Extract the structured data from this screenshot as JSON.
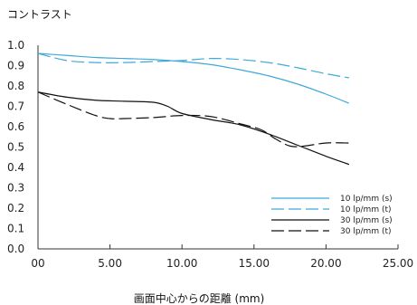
{
  "chart_data": {
    "type": "line",
    "ylabel": "コントラスト",
    "xlabel": "画面中心からの距離 (mm)",
    "xlim": [
      0,
      25
    ],
    "ylim": [
      0,
      1.0
    ],
    "x_ticks": [
      0,
      5,
      10,
      15,
      20,
      25
    ],
    "x_tick_labels": [
      "00",
      "5.00",
      "10.00",
      "15.00",
      "20.00",
      "25.00"
    ],
    "y_ticks": [
      0,
      0.1,
      0.2,
      0.3,
      0.4,
      0.5,
      0.6,
      0.7,
      0.8,
      0.9,
      1.0
    ],
    "y_tick_labels": [
      "0.0",
      "0.1",
      "0.2",
      "0.3",
      "0.4",
      "0.5",
      "0.6",
      "0.7",
      "0.8",
      "0.9",
      "1.0"
    ],
    "grid": false,
    "legend_position": "bottom-right",
    "series": [
      {
        "name": "10 lp/mm (s)",
        "color": "#3fa9d9",
        "dash": "solid",
        "x": [
          0,
          2,
          4,
          6,
          8,
          10,
          12,
          14,
          16,
          18,
          20,
          21.6
        ],
        "y": [
          0.96,
          0.95,
          0.94,
          0.935,
          0.93,
          0.92,
          0.905,
          0.88,
          0.85,
          0.81,
          0.76,
          0.715
        ]
      },
      {
        "name": "10 lp/mm (t)",
        "color": "#3fa9d9",
        "dash": "long-dash",
        "x": [
          0,
          2,
          4,
          6,
          8,
          10,
          12,
          14,
          16,
          18,
          20,
          21.6
        ],
        "y": [
          0.96,
          0.925,
          0.915,
          0.915,
          0.92,
          0.925,
          0.935,
          0.93,
          0.915,
          0.89,
          0.86,
          0.84
        ]
      },
      {
        "name": "30 lp/mm (s)",
        "color": "#111111",
        "dash": "solid",
        "x": [
          0,
          2,
          4,
          6,
          8,
          9,
          10,
          12,
          14,
          16,
          18,
          20,
          21.6
        ],
        "y": [
          0.77,
          0.745,
          0.73,
          0.725,
          0.72,
          0.7,
          0.665,
          0.635,
          0.61,
          0.565,
          0.51,
          0.455,
          0.415
        ]
      },
      {
        "name": "30 lp/mm (t)",
        "color": "#111111",
        "dash": "long-dash",
        "x": [
          0,
          2,
          4,
          5,
          6,
          8,
          10,
          12,
          14,
          15.5,
          16.5,
          17.5,
          18.5,
          20,
          21.6
        ],
        "y": [
          0.77,
          0.71,
          0.655,
          0.64,
          0.64,
          0.645,
          0.655,
          0.65,
          0.615,
          0.585,
          0.54,
          0.505,
          0.505,
          0.52,
          0.52
        ]
      }
    ]
  }
}
